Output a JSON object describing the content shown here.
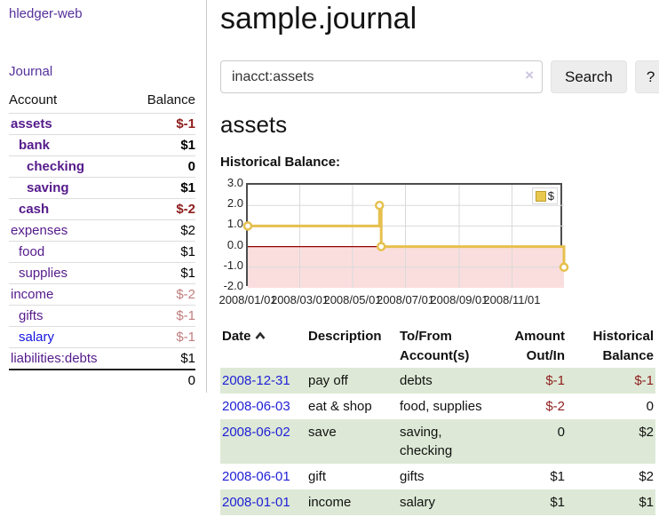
{
  "app": {
    "brand": "hledger-web",
    "nav_journal": "Journal"
  },
  "sidebar": {
    "header": {
      "account": "Account",
      "balance": "Balance"
    },
    "accounts": [
      {
        "name": "assets",
        "balance": "$-1",
        "indent": 1,
        "bold": true,
        "neg": "strong"
      },
      {
        "name": "bank",
        "balance": "$1",
        "indent": 2,
        "bold": true,
        "neg": null
      },
      {
        "name": "checking",
        "balance": "0",
        "indent": 3,
        "bold": true,
        "neg": null
      },
      {
        "name": "saving",
        "balance": "$1",
        "indent": 3,
        "bold": true,
        "neg": null
      },
      {
        "name": "cash",
        "balance": "$-2",
        "indent": 2,
        "bold": true,
        "neg": "strong"
      },
      {
        "name": "expenses",
        "balance": "$2",
        "indent": 1,
        "bold": false,
        "neg": null
      },
      {
        "name": "food",
        "balance": "$1",
        "indent": 2,
        "bold": false,
        "neg": null
      },
      {
        "name": "supplies",
        "balance": "$1",
        "indent": 2,
        "bold": false,
        "neg": null
      },
      {
        "name": "income",
        "balance": "$-2",
        "indent": 1,
        "bold": false,
        "neg": "muted"
      },
      {
        "name": "gifts",
        "balance": "$-1",
        "indent": 2,
        "bold": false,
        "neg": "muted"
      },
      {
        "name": "salary",
        "balance": "$-1",
        "indent": 2,
        "bold": false,
        "neg": "muted",
        "unvisited": true
      },
      {
        "name": "liabilities:debts",
        "balance": "$1",
        "indent": 1,
        "bold": false,
        "neg": null
      }
    ],
    "total": "0"
  },
  "header": {
    "title": "sample.journal"
  },
  "search": {
    "value": "inacct:assets",
    "clear_icon": "×",
    "button_label": "Search",
    "help_label": "?"
  },
  "account_page": {
    "title": "assets",
    "chart_label": "Historical Balance:"
  },
  "chart_data": {
    "type": "line",
    "step": true,
    "title": "Historical Balance:",
    "legend": "$",
    "legend_position": "top-right",
    "grid": true,
    "x_range": [
      "2008-01-01",
      "2008-12-31"
    ],
    "ylim": [
      -2,
      3
    ],
    "yticks": [
      3.0,
      2.0,
      1.0,
      0.0,
      -1.0,
      -2.0
    ],
    "xticks": [
      {
        "label": "2008/01/01",
        "date": "2008-01-01"
      },
      {
        "label": "2008/03/01",
        "date": "2008-03-01"
      },
      {
        "label": "2008/05/01",
        "date": "2008-05-01"
      },
      {
        "label": "2008/07/01",
        "date": "2008-07-01"
      },
      {
        "label": "2008/09/01",
        "date": "2008-09-01"
      },
      {
        "label": "2008/11/01",
        "date": "2008-11-01"
      }
    ],
    "series": [
      {
        "name": "$",
        "color": "#e6c04e",
        "points": [
          {
            "date": "2008-01-01",
            "value": 1
          },
          {
            "date": "2008-06-01",
            "value": 2
          },
          {
            "date": "2008-06-03",
            "value": 0
          },
          {
            "date": "2008-12-31",
            "value": -1
          }
        ]
      }
    ],
    "negative_region_fill": "#fadede",
    "zero_line_color": "#990000",
    "grid_color": "#d9d9d9"
  },
  "register": {
    "headers": [
      {
        "line1": "Date",
        "line2": ""
      },
      {
        "line1": "Description",
        "line2": ""
      },
      {
        "line1": "To/From",
        "line2": "Account(s)"
      },
      {
        "line1": "Amount",
        "line2": "Out/In"
      },
      {
        "line1": "Historical",
        "line2": "Balance"
      }
    ],
    "sort": {
      "column": "Date",
      "direction": "ascending",
      "icon": "chevron-up"
    },
    "rows": [
      {
        "date": "2008-12-31",
        "description": "pay off",
        "accounts": "debts",
        "amount": "$-1",
        "amount_neg": true,
        "balance": "$-1",
        "balance_neg": true
      },
      {
        "date": "2008-06-03",
        "description": "eat & shop",
        "accounts": "food, supplies",
        "amount": "$-2",
        "amount_neg": true,
        "balance": "0",
        "balance_neg": false
      },
      {
        "date": "2008-06-02",
        "description": "save",
        "accounts": "saving, checking",
        "amount": "0",
        "amount_neg": false,
        "balance": "$2",
        "balance_neg": false
      },
      {
        "date": "2008-06-01",
        "description": "gift",
        "accounts": "gifts",
        "amount": "$1",
        "amount_neg": false,
        "balance": "$2",
        "balance_neg": false
      },
      {
        "date": "2008-01-01",
        "description": "income",
        "accounts": "salary",
        "amount": "$1",
        "amount_neg": false,
        "balance": "$1",
        "balance_neg": false
      }
    ]
  },
  "colors": {
    "link_purple": "#551a8b",
    "link_blue": "#1414e0",
    "negative_strong": "#8f1d1d",
    "negative_muted": "#c17d7d",
    "row_stripe_green": "#dde9d6",
    "chart_gold": "#e6c04e",
    "chart_negative_pink": "#fadede",
    "zero_line_red": "#990000"
  }
}
